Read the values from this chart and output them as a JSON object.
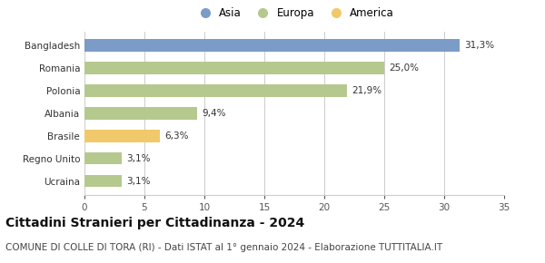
{
  "categories": [
    "Ucraina",
    "Regno Unito",
    "Brasile",
    "Albania",
    "Polonia",
    "Romania",
    "Bangladesh"
  ],
  "values": [
    3.1,
    3.1,
    6.3,
    9.4,
    21.9,
    25.0,
    31.3
  ],
  "labels": [
    "3,1%",
    "3,1%",
    "6,3%",
    "9,4%",
    "21,9%",
    "25,0%",
    "31,3%"
  ],
  "colors": [
    "#b5c98e",
    "#b5c98e",
    "#f0c96a",
    "#b5c98e",
    "#b5c98e",
    "#b5c98e",
    "#7a9cc7"
  ],
  "legend_labels": [
    "Asia",
    "Europa",
    "America"
  ],
  "legend_colors": [
    "#7a9cc7",
    "#b5c98e",
    "#f0c96a"
  ],
  "xlim": [
    0,
    35
  ],
  "xticks": [
    0,
    5,
    10,
    15,
    20,
    25,
    30,
    35
  ],
  "title": "Cittadini Stranieri per Cittadinanza - 2024",
  "subtitle": "COMUNE DI COLLE DI TORA (RI) - Dati ISTAT al 1° gennaio 2024 - Elaborazione TUTTITALIA.IT",
  "title_fontsize": 10,
  "subtitle_fontsize": 7.5,
  "label_fontsize": 7.5,
  "tick_fontsize": 7.5,
  "legend_fontsize": 8.5,
  "bg_color": "#ffffff",
  "bar_height": 0.55
}
